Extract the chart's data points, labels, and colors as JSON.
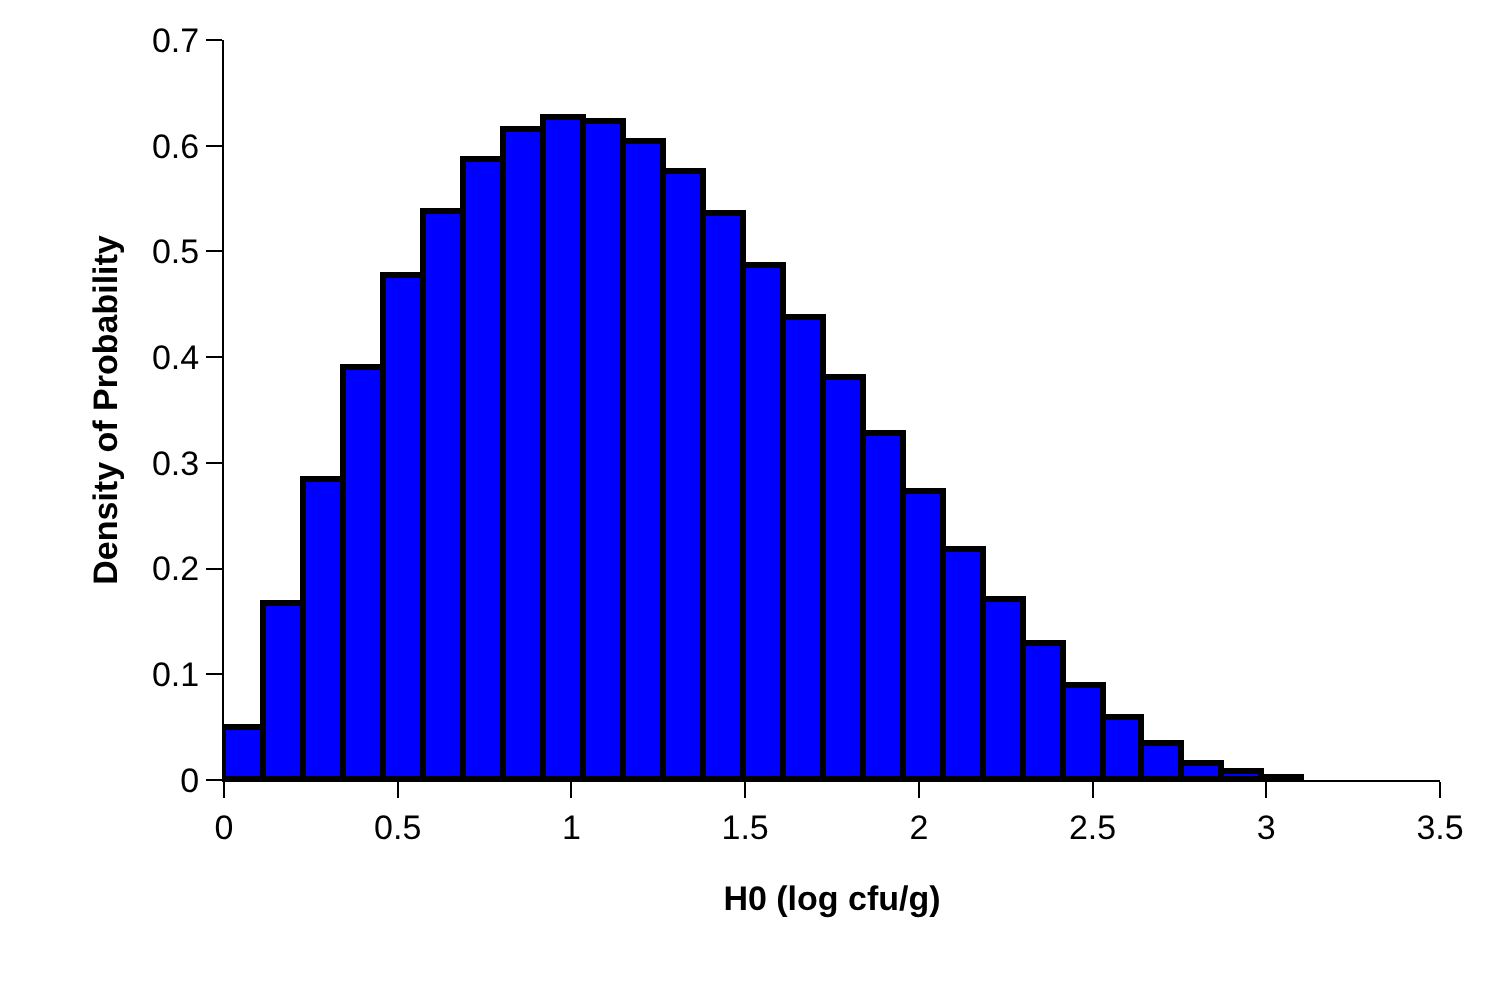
{
  "chart_data": {
    "type": "histogram",
    "xlabel": "H0 (log cfu/g)",
    "ylabel": "Density of Probability",
    "bins": [
      0,
      0.115,
      0.23,
      0.345,
      0.46,
      0.575,
      0.69,
      0.805,
      0.92,
      1.035,
      1.15,
      1.265,
      1.38,
      1.495,
      1.61,
      1.725,
      1.84,
      1.955,
      2.07,
      2.185,
      2.3,
      2.415,
      2.53,
      2.645,
      2.76,
      2.875,
      2.99,
      3.105
    ],
    "values": [
      0.05,
      0.167,
      0.284,
      0.39,
      0.476,
      0.538,
      0.586,
      0.614,
      0.626,
      0.622,
      0.604,
      0.575,
      0.535,
      0.487,
      0.437,
      0.381,
      0.327,
      0.272,
      0.217,
      0.171,
      0.128,
      0.089,
      0.058,
      0.035,
      0.015,
      0.007,
      0.002
    ],
    "color": "#0000ff",
    "xlim": [
      0,
      3.5
    ],
    "xticks": [
      0,
      0.5,
      1,
      1.5,
      2,
      2.5,
      3,
      3.5
    ],
    "ylim": [
      0,
      0.7
    ],
    "yticks": [
      0,
      0.1,
      0.2,
      0.3,
      0.4,
      0.5,
      0.6,
      0.7
    ],
    "grid": false,
    "legend": false
  }
}
